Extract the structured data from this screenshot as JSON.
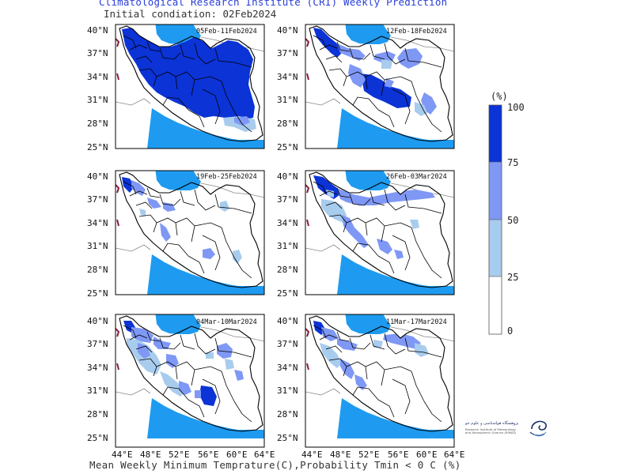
{
  "header": {
    "title": "Climatological Research Institute (CRI) Weekly Prediction",
    "subtitle": "Initial condiation: 02Feb2024"
  },
  "footer": {
    "text": "Mean Weekly Minimum Temprature(C),Probability Tmin < 0 C (%)"
  },
  "axes": {
    "lat_labels": [
      "40°N",
      "37°N",
      "34°N",
      "31°N",
      "28°N",
      "25°N"
    ],
    "lon_labels": [
      "44°E",
      "48°E",
      "52°E",
      "56°E",
      "60°E",
      "64°E"
    ]
  },
  "panels": [
    {
      "period": "05Feb-11Feb2024",
      "coverage": "very-high"
    },
    {
      "period": "12Feb-18Feb2024",
      "coverage": "medium"
    },
    {
      "period": "19Feb-25Feb2024",
      "coverage": "low"
    },
    {
      "period": "26Feb-03Mar2024",
      "coverage": "medium-low"
    },
    {
      "period": "04Mar-10Mar2024",
      "coverage": "medium-low"
    },
    {
      "period": "11Mar-17Mar2024",
      "coverage": "low"
    }
  ],
  "colorbar": {
    "unit": "(%)",
    "levels": [
      "100",
      "75",
      "50",
      "25",
      "0"
    ],
    "colors": [
      "#0b33d6",
      "#7f98f5",
      "#a8cced",
      "#ffffff"
    ]
  },
  "colors": {
    "sea": "#1e9bf0",
    "land_outside": "#ffffff",
    "border": "#000000"
  },
  "logo": {
    "name_fa": "پژوهشگاه هواشناسی و علوم جو",
    "name_en_1": "Research Institute of Meteorology",
    "name_en_2": "and Atmospheric Science (RIMAS)"
  }
}
